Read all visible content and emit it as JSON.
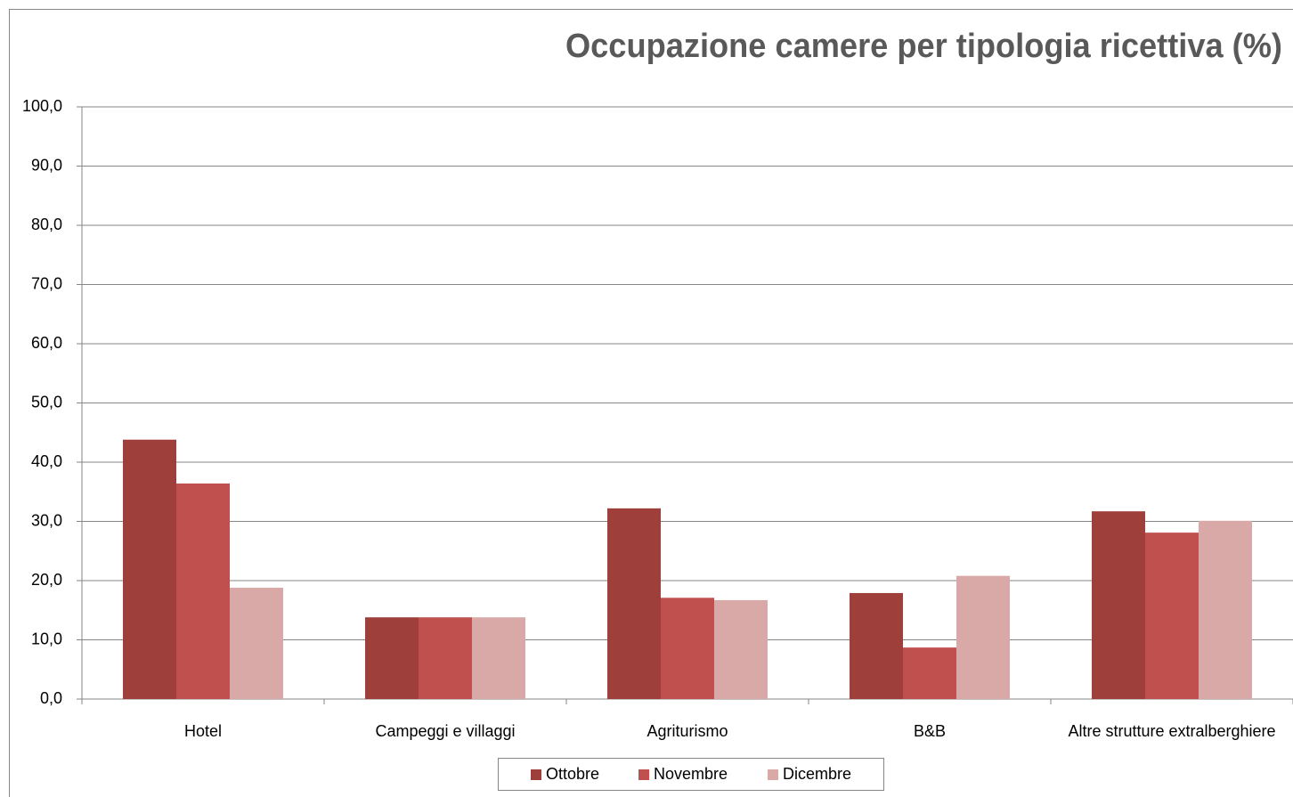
{
  "chart_data": {
    "type": "bar",
    "title": "Occupazione camere per tipologia ricettiva (%)",
    "categories": [
      "Hotel",
      "Campeggi e villaggi",
      "Agriturismo",
      "B&B",
      "Altre strutture extralberghiere"
    ],
    "series": [
      {
        "name": "Ottobre",
        "color": "#9e3f3c",
        "values": [
          43.8,
          13.8,
          32.2,
          17.9,
          31.7
        ]
      },
      {
        "name": "Novembre",
        "color": "#c0504d",
        "values": [
          36.4,
          13.8,
          17.1,
          8.7,
          28.1
        ]
      },
      {
        "name": "Dicembre",
        "color": "#d9a9a8",
        "values": [
          18.8,
          13.8,
          16.7,
          20.8,
          30.1
        ]
      }
    ],
    "ylim": [
      0,
      100
    ],
    "yticks": [
      {
        "value": 0,
        "label": "0,0"
      },
      {
        "value": 10,
        "label": "10,0"
      },
      {
        "value": 20,
        "label": "20,0"
      },
      {
        "value": 30,
        "label": "30,0"
      },
      {
        "value": 40,
        "label": "40,0"
      },
      {
        "value": 50,
        "label": "50,0"
      },
      {
        "value": 60,
        "label": "60,0"
      },
      {
        "value": 70,
        "label": "70,0"
      },
      {
        "value": 80,
        "label": "80,0"
      },
      {
        "value": 90,
        "label": "90,0"
      },
      {
        "value": 100,
        "label": "100,0"
      }
    ],
    "grid": true,
    "legend": "bottom"
  }
}
